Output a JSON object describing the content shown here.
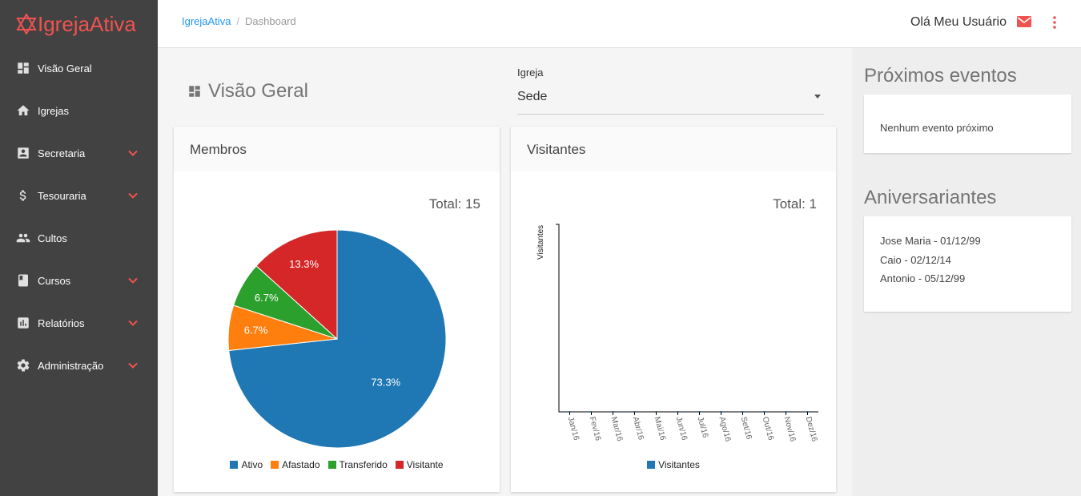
{
  "app": {
    "name": "IgrejaAtiva"
  },
  "sidebar": {
    "items": [
      {
        "label": "Visão Geral",
        "icon": "dashboard-icon",
        "expandable": false
      },
      {
        "label": "Igrejas",
        "icon": "home-icon",
        "expandable": false
      },
      {
        "label": "Secretaria",
        "icon": "contact-card-icon",
        "expandable": true
      },
      {
        "label": "Tesouraria",
        "icon": "dollar-icon",
        "expandable": true
      },
      {
        "label": "Cultos",
        "icon": "people-icon",
        "expandable": false
      },
      {
        "label": "Cursos",
        "icon": "book-icon",
        "expandable": true
      },
      {
        "label": "Relatórios",
        "icon": "bar-chart-icon",
        "expandable": true
      },
      {
        "label": "Administração",
        "icon": "gear-icon",
        "expandable": true
      }
    ]
  },
  "header": {
    "breadcrumb": [
      "IgrejaAtiva",
      "Dashboard"
    ],
    "greeting": "Olá Meu Usuário"
  },
  "main": {
    "page_title": "Visão Geral",
    "church_select": {
      "label": "Igreja",
      "value": "Sede"
    }
  },
  "cards": {
    "members": {
      "title": "Membros",
      "total": "Total: 15"
    },
    "visitors": {
      "title": "Visitantes",
      "total": "Total: 1"
    }
  },
  "chart_data": [
    {
      "type": "pie",
      "title": "Membros",
      "categories": [
        "Ativo",
        "Afastado",
        "Transferido",
        "Visitante"
      ],
      "values": [
        73.3,
        6.7,
        6.7,
        13.3
      ],
      "labels": [
        "73.3%",
        "6.7%",
        "6.7%",
        "13.3%"
      ],
      "colors": [
        "#1f77b4",
        "#ff7f0e",
        "#2ca02c",
        "#d62728"
      ],
      "legend": "bottom"
    },
    {
      "type": "bar",
      "title": "Visitantes",
      "ylabel": "Visitantes",
      "categories": [
        "Jan/16",
        "Fev/16",
        "Mar/16",
        "Abr/16",
        "Mai/16",
        "Jun/16",
        "Jul/16",
        "Ago/16",
        "Set/16",
        "Out/16",
        "Nov/16",
        "Dez/16"
      ],
      "series": [
        {
          "name": "Visitantes",
          "values": [
            0,
            0,
            0,
            0,
            0,
            0,
            0,
            0,
            0,
            0,
            0,
            0
          ]
        }
      ],
      "colors": [
        "#1f77b4"
      ],
      "legend": "bottom"
    }
  ],
  "right_panel": {
    "events_title": "Próximos eventos",
    "events_empty": "Nenhum evento próximo",
    "birthdays_title": "Aniversariantes",
    "birthdays": [
      "Jose Maria - 01/12/99",
      "Caio - 02/12/14",
      "Antonio - 05/12/99"
    ]
  },
  "colors": {
    "brand": "#ef5350",
    "sidebar_bg": "#424242",
    "link": "#2196f3"
  }
}
